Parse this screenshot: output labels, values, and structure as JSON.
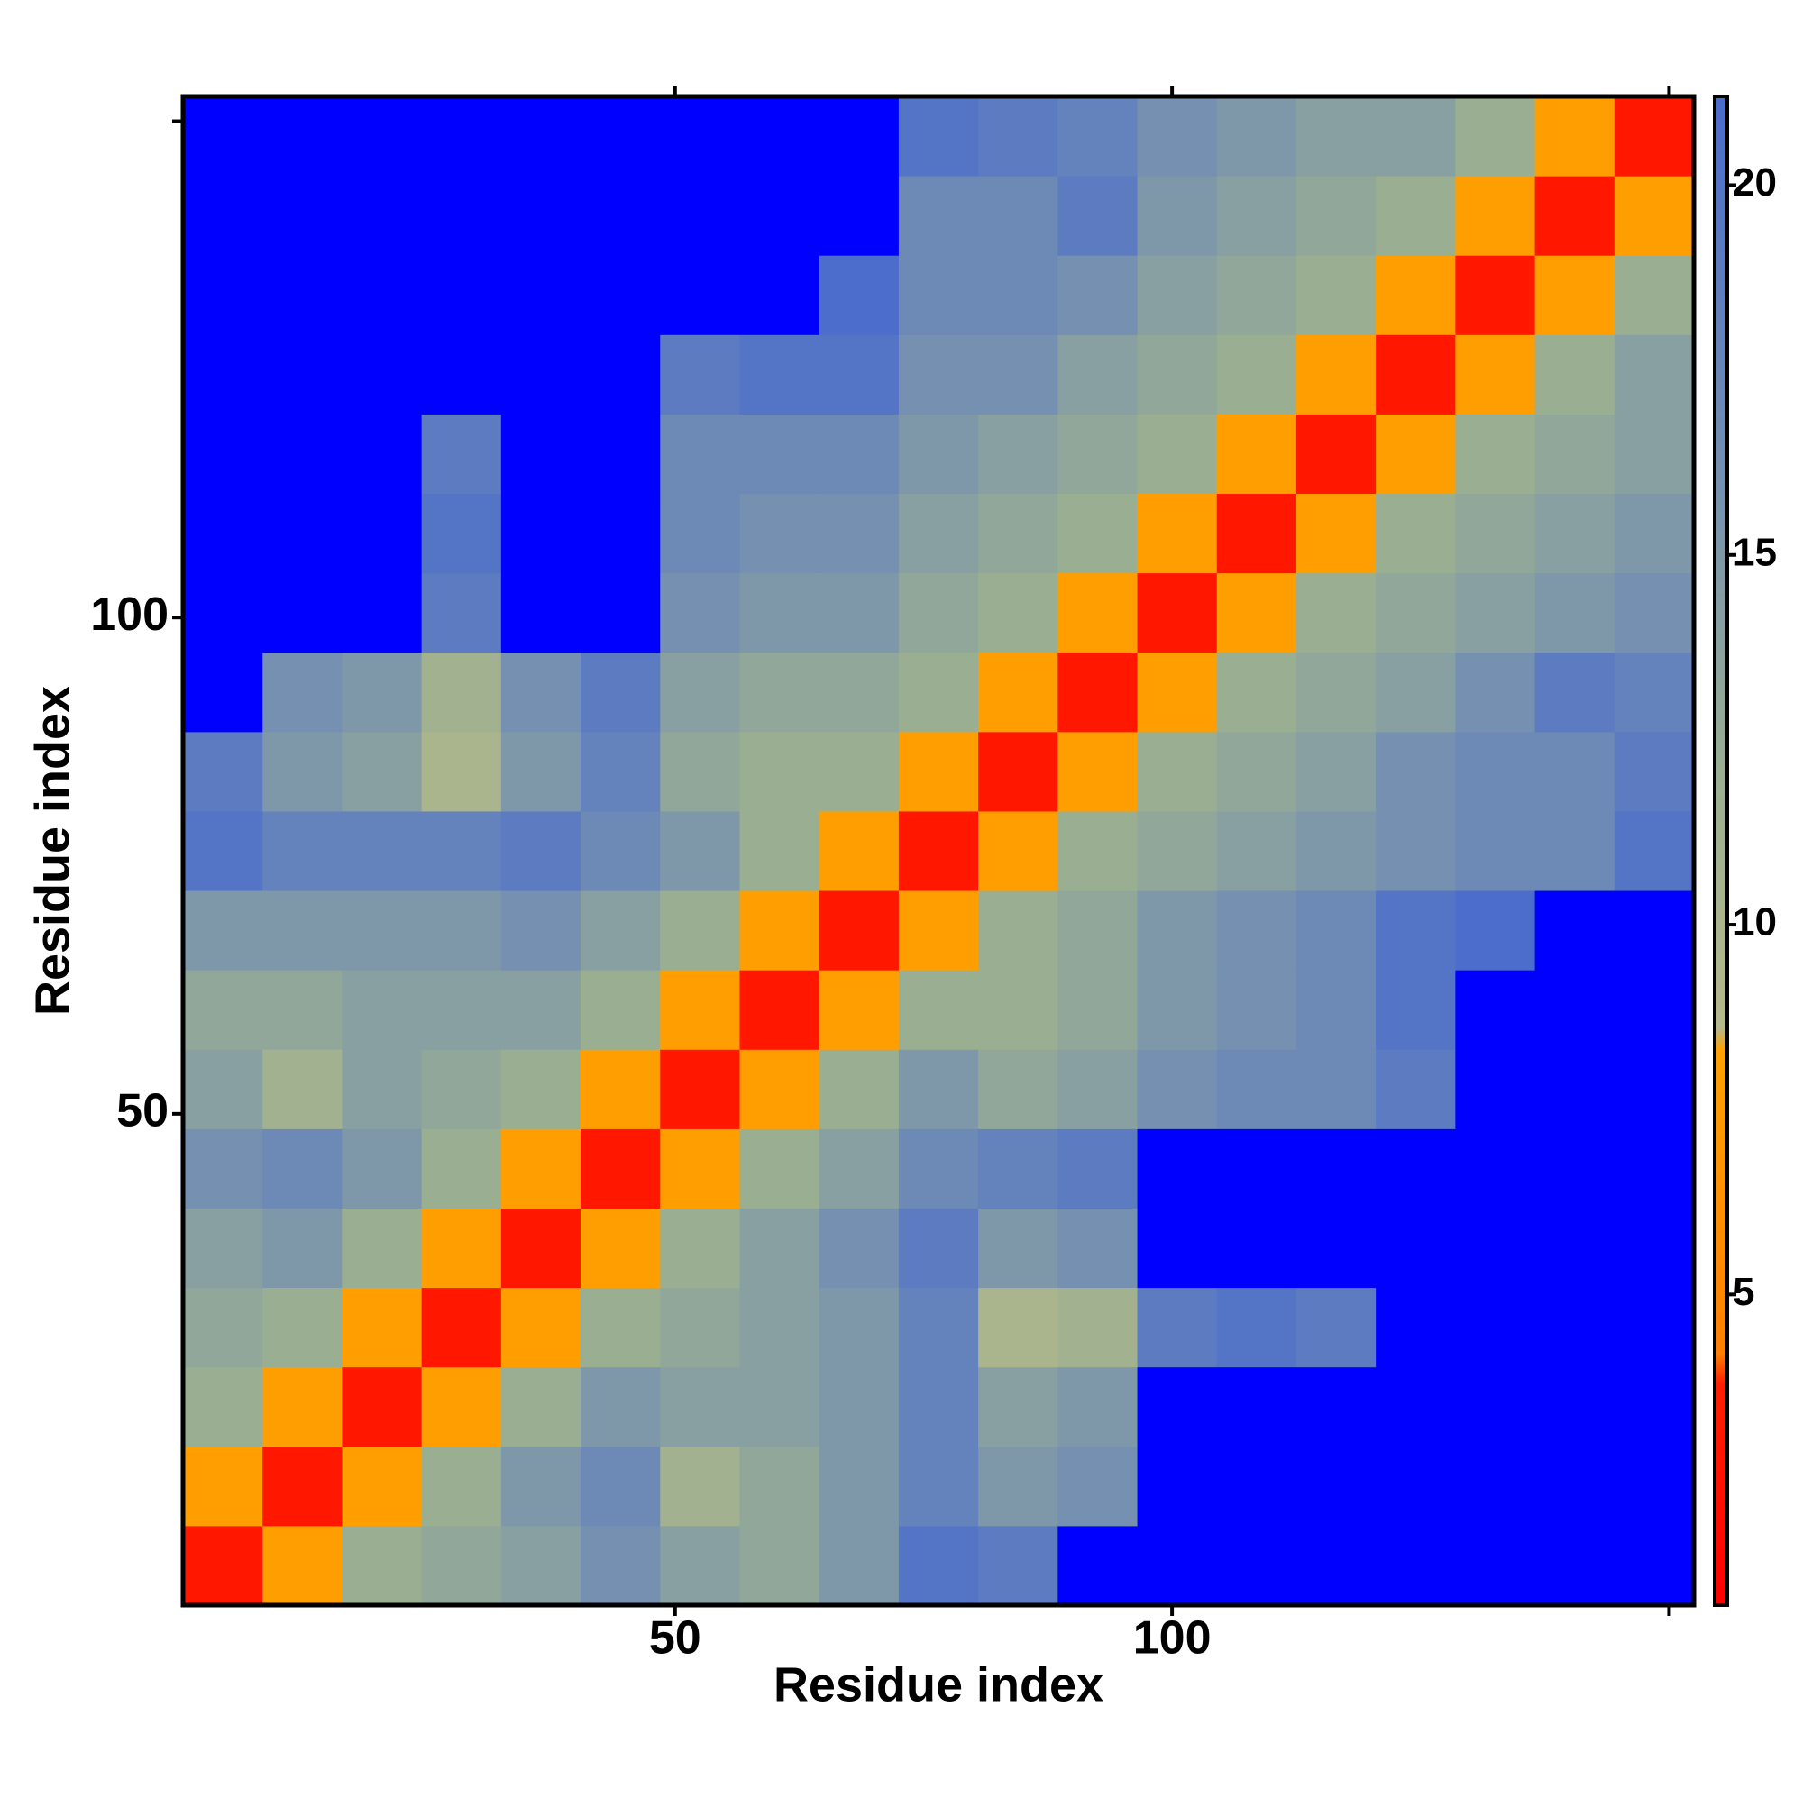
{
  "chart_data": {
    "type": "heatmap",
    "x_label": "Residue index",
    "y_label": "Residue index",
    "xlim": [
      0.5,
      152.5
    ],
    "ylim": [
      0.5,
      152.5
    ],
    "xticks": [
      50,
      100
    ],
    "yticks": [
      50,
      100
    ],
    "xticks_unlabeled": [
      150
    ],
    "yticks_unlabeled": [
      150
    ],
    "bin_edges": [
      0.5,
      8.5,
      16.5,
      24.5,
      32.5,
      40.5,
      48.5,
      56.5,
      64.5,
      72.5,
      80.5,
      88.5,
      96.5,
      104.5,
      112.5,
      120.5,
      128.5,
      136.5,
      144.5,
      152.5
    ],
    "zlim": [
      0.8,
      21.2
    ],
    "zticks": [
      5,
      10,
      15,
      20
    ],
    "colorscale": [
      [
        0.8,
        "#ff0000"
      ],
      [
        3.8,
        "#ff2000"
      ],
      [
        4.2,
        "#ff7f00"
      ],
      [
        8.3,
        "#ffa000"
      ],
      [
        8.6,
        "#b5b88a"
      ],
      [
        12,
        "#9aaf92"
      ],
      [
        16,
        "#7590b0"
      ],
      [
        21.2,
        "#4a6ccc"
      ]
    ],
    "over_color": "#0000ff",
    "z": [
      [
        3,
        8,
        12,
        13,
        14,
        16,
        14,
        13,
        15,
        20,
        19,
        22,
        25,
        25,
        25,
        25,
        25,
        25,
        25
      ],
      [
        8,
        3,
        8,
        12,
        15,
        17,
        11,
        13,
        15,
        18,
        15,
        16,
        25,
        25,
        22,
        22,
        25,
        25,
        25
      ],
      [
        12,
        8,
        3,
        8,
        12,
        15,
        14,
        14,
        15,
        18,
        14,
        15,
        25,
        25,
        25,
        25,
        25,
        25,
        25
      ],
      [
        13,
        12,
        8,
        3,
        8,
        12,
        13,
        14,
        15,
        18,
        10,
        11,
        19,
        20,
        19,
        25,
        25,
        25,
        25
      ],
      [
        14,
        15,
        12,
        8,
        3,
        8,
        12,
        14,
        16,
        19,
        15,
        16,
        25,
        25,
        22,
        25,
        25,
        25,
        25
      ],
      [
        16,
        17,
        15,
        12,
        8,
        3,
        8,
        12,
        14,
        17,
        18,
        19,
        25,
        25,
        25,
        25,
        25,
        25,
        25
      ],
      [
        14,
        11,
        14,
        13,
        12,
        8,
        3,
        8,
        12,
        15,
        13,
        14,
        16,
        17,
        17,
        19,
        25,
        25,
        25
      ],
      [
        13,
        13,
        14,
        14,
        14,
        12,
        8,
        3,
        8,
        12,
        12,
        13,
        15,
        16,
        17,
        20,
        25,
        25,
        25
      ],
      [
        15,
        15,
        15,
        15,
        16,
        14,
        12,
        8,
        3,
        8,
        12,
        13,
        15,
        16,
        17,
        20,
        21,
        25,
        25
      ],
      [
        20,
        18,
        18,
        18,
        19,
        17,
        15,
        12,
        8,
        3,
        8,
        12,
        13,
        14,
        15,
        16,
        17,
        17,
        20
      ],
      [
        19,
        15,
        14,
        10,
        15,
        18,
        13,
        12,
        12,
        8,
        3,
        8,
        12,
        13,
        14,
        16,
        17,
        17,
        19
      ],
      [
        22,
        16,
        15,
        11,
        16,
        19,
        14,
        13,
        13,
        12,
        8,
        3,
        8,
        12,
        13,
        14,
        16,
        19,
        18
      ],
      [
        25,
        25,
        25,
        19,
        25,
        25,
        16,
        15,
        15,
        13,
        12,
        8,
        3,
        8,
        12,
        13,
        14,
        15,
        16
      ],
      [
        25,
        25,
        25,
        20,
        25,
        25,
        17,
        16,
        16,
        14,
        13,
        12,
        8,
        3,
        8,
        12,
        13,
        14,
        15
      ],
      [
        25,
        22,
        25,
        19,
        22,
        25,
        17,
        17,
        17,
        15,
        14,
        13,
        12,
        8,
        3,
        8,
        12,
        13,
        14
      ],
      [
        25,
        22,
        25,
        25,
        25,
        25,
        19,
        20,
        20,
        16,
        16,
        14,
        13,
        12,
        8,
        3,
        8,
        12,
        14
      ],
      [
        25,
        25,
        25,
        25,
        25,
        25,
        25,
        25,
        21,
        17,
        17,
        16,
        14,
        13,
        12,
        8,
        3,
        8,
        12
      ],
      [
        25,
        25,
        25,
        25,
        25,
        25,
        25,
        25,
        25,
        17,
        17,
        19,
        15,
        14,
        13,
        12,
        8,
        3,
        8
      ],
      [
        25,
        25,
        25,
        25,
        25,
        25,
        25,
        25,
        25,
        20,
        19,
        18,
        16,
        15,
        14,
        14,
        12,
        8,
        3
      ]
    ]
  }
}
